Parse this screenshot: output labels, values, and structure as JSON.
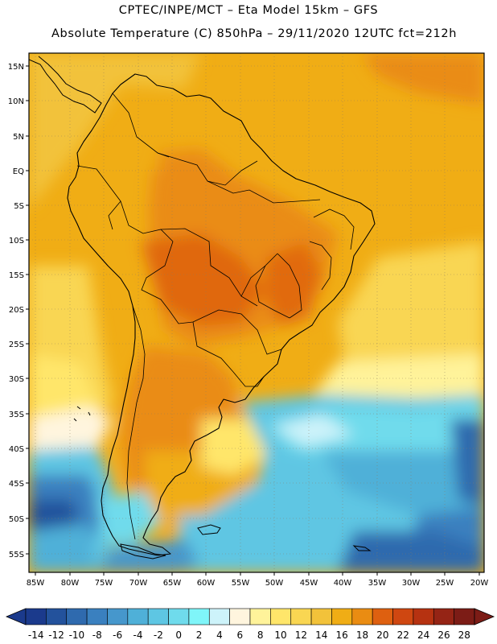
{
  "header": {
    "line1": "CPTEC/INPE/MCT –  Eta Model 15km – GFS",
    "line2": "Absolute Temperature (C) 850hPa – 29/11/2020 12UTC fct=212h"
  },
  "axes": {
    "lat_ticks": [
      "15N",
      "10N",
      "5N",
      "EQ",
      "5S",
      "10S",
      "15S",
      "20S",
      "25S",
      "30S",
      "35S",
      "40S",
      "45S",
      "50S",
      "55S"
    ],
    "lon_ticks": [
      "85W",
      "80W",
      "75W",
      "70W",
      "65W",
      "60W",
      "55W",
      "50W",
      "45W",
      "40W",
      "35W",
      "30W",
      "25W",
      "20W"
    ]
  },
  "colorbar": {
    "labels": [
      "-14",
      "-12",
      "-10",
      "-8",
      "-6",
      "-4",
      "-2",
      "0",
      "2",
      "4",
      "6",
      "8",
      "10",
      "12",
      "14",
      "16",
      "18",
      "20",
      "22",
      "24",
      "26",
      "28"
    ],
    "colors": [
      "#1b3a8c",
      "#23529c",
      "#2f6aae",
      "#3a80bf",
      "#4697cc",
      "#4fb0d8",
      "#5ec6e3",
      "#6fdbec",
      "#7ff5f9",
      "#cdf3fa",
      "#fff5de",
      "#fff39a",
      "#ffe66a",
      "#f9d652",
      "#f2c23a",
      "#f0ad15",
      "#ea8c12",
      "#de6010",
      "#cf4711",
      "#b63211",
      "#952415",
      "#7c1c16"
    ]
  },
  "map_regions": [
    "south-america-outline",
    "atlantic-ocean",
    "pacific-ocean",
    "falkland-islands",
    "tierra-del-fuego"
  ]
}
